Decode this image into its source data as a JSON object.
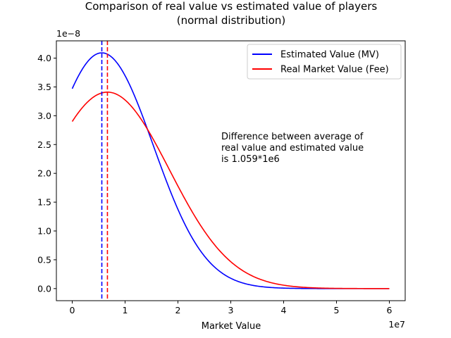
{
  "chart_data": {
    "type": "line",
    "title_line1": "Comparison of real value vs estimated value of players",
    "title_line2": "(normal distribution)",
    "xlabel": "Market Value",
    "ylabel": "",
    "x_offset_text": "1e7",
    "y_offset_text": "1e−8",
    "xlim": [
      -3000000,
      63000000
    ],
    "ylim": [
      -2.1e-09,
      4.3e-08
    ],
    "x_ticks": [
      0,
      10000000,
      20000000,
      30000000,
      40000000,
      50000000,
      60000000
    ],
    "x_tick_labels": [
      "0",
      "1",
      "2",
      "3",
      "4",
      "5",
      "6"
    ],
    "y_ticks": [
      0,
      5e-09,
      1e-08,
      1.5e-08,
      2e-08,
      2.5e-08,
      3e-08,
      3.5e-08,
      4e-08
    ],
    "y_tick_labels": [
      "0.0",
      "0.5",
      "1.0",
      "1.5",
      "2.0",
      "2.5",
      "3.0",
      "3.5",
      "4.0"
    ],
    "x_range": [
      0,
      60000000
    ],
    "grid": false,
    "legend_position": "upper right",
    "series": [
      {
        "name": "Estimated Value (MV)",
        "color": "#0000ff",
        "mean": 5600000,
        "std": 9750000,
        "mean_line_style": "dashed"
      },
      {
        "name": "Real Market Value (Fee)",
        "color": "#ff0000",
        "mean": 6659000,
        "std": 11700000,
        "mean_line_style": "dashed"
      }
    ],
    "annotation": {
      "lines": [
        "Difference between average of",
        "real value and estimated value",
        "is 1.059*1e6"
      ]
    }
  }
}
